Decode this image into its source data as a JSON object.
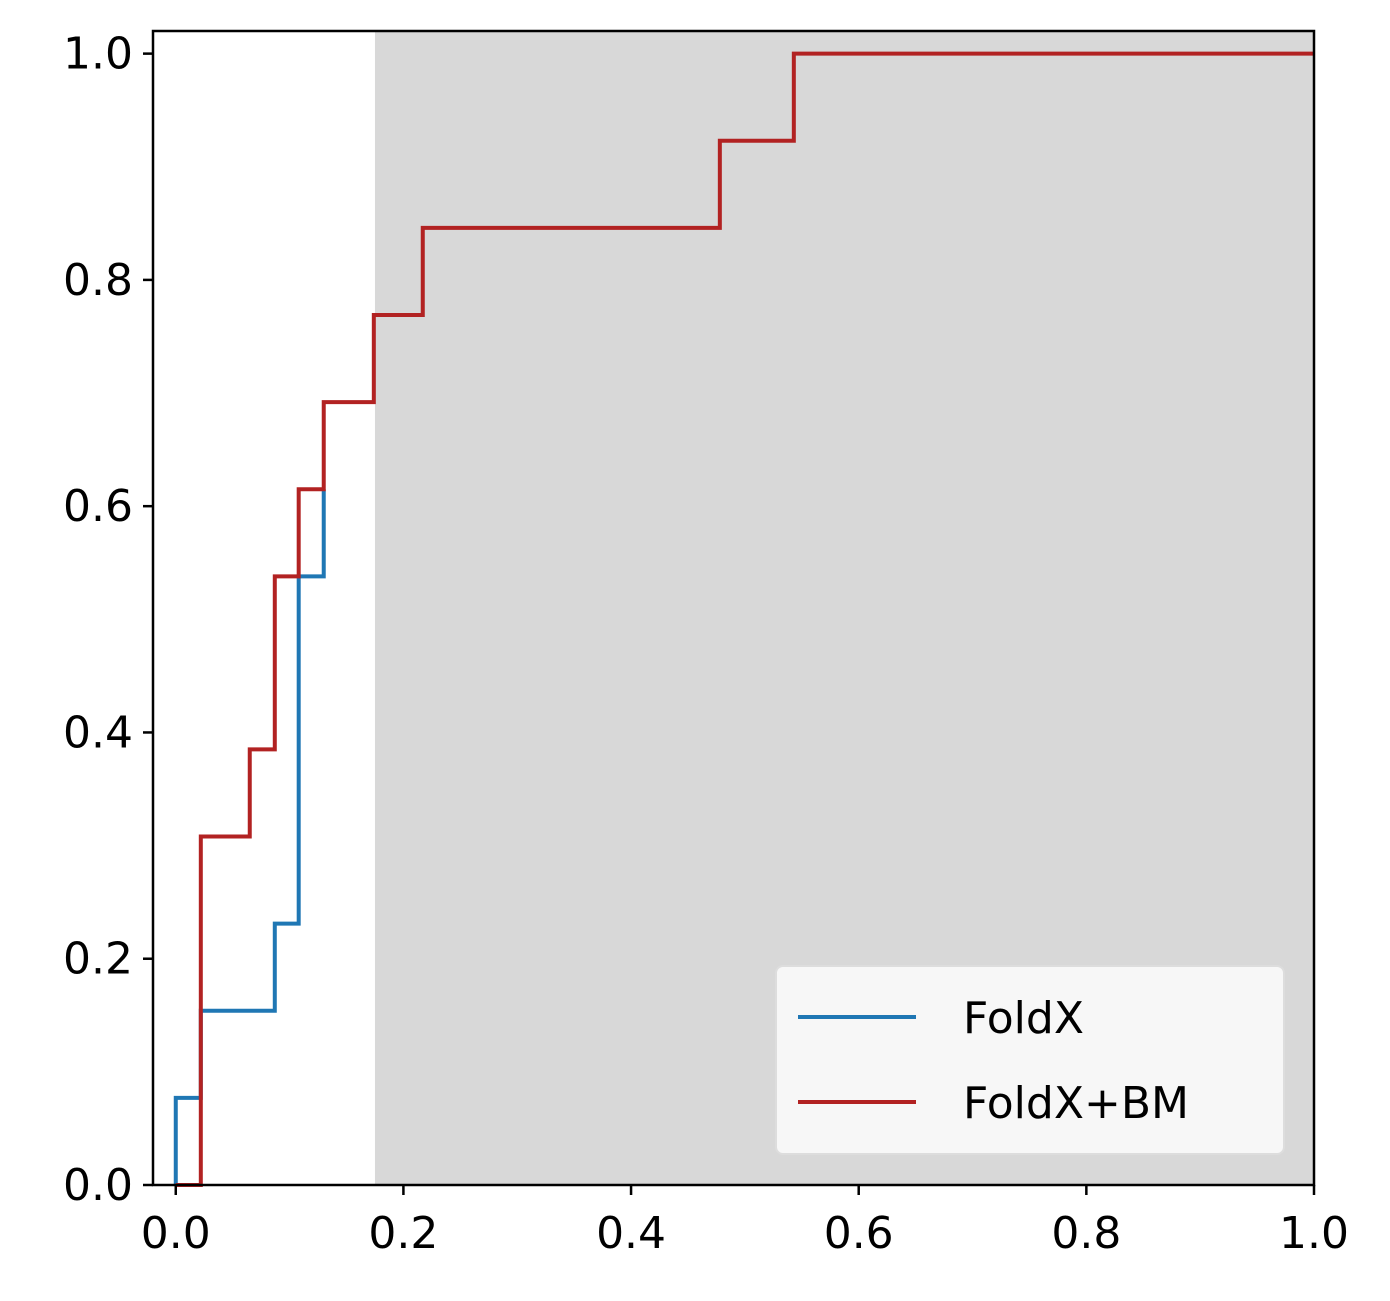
{
  "chart_data": {
    "type": "line",
    "title": "",
    "xlabel": "",
    "ylabel": "",
    "xlim": [
      -0.02,
      1.0
    ],
    "ylim": [
      0.0,
      1.02
    ],
    "xticks": [
      "0.0",
      "0.2",
      "0.4",
      "0.6",
      "0.8",
      "1.0"
    ],
    "yticks": [
      "0.0",
      "0.2",
      "0.4",
      "0.6",
      "0.8",
      "1.0"
    ],
    "grid": false,
    "shaded_region": {
      "x_start": 0.175,
      "x_end": 1.0,
      "color": "#d8d8d8"
    },
    "legend_position": "lower-right",
    "series": [
      {
        "name": "FoldX",
        "color": "#1f77b4",
        "step": "post",
        "x": [
          0.0,
          0.0,
          0.022,
          0.087,
          0.108,
          0.13,
          0.13
        ],
        "y": [
          0.0,
          0.077,
          0.154,
          0.231,
          0.538,
          0.615,
          0.615
        ]
      },
      {
        "name": "FoldX+BM",
        "color": "#b22222",
        "step": "post",
        "x": [
          0.0,
          0.022,
          0.065,
          0.087,
          0.108,
          0.13,
          0.174,
          0.217,
          0.478,
          0.543,
          1.0
        ],
        "y": [
          0.0,
          0.308,
          0.385,
          0.538,
          0.615,
          0.692,
          0.769,
          0.846,
          0.923,
          1.0,
          1.0
        ]
      }
    ]
  }
}
